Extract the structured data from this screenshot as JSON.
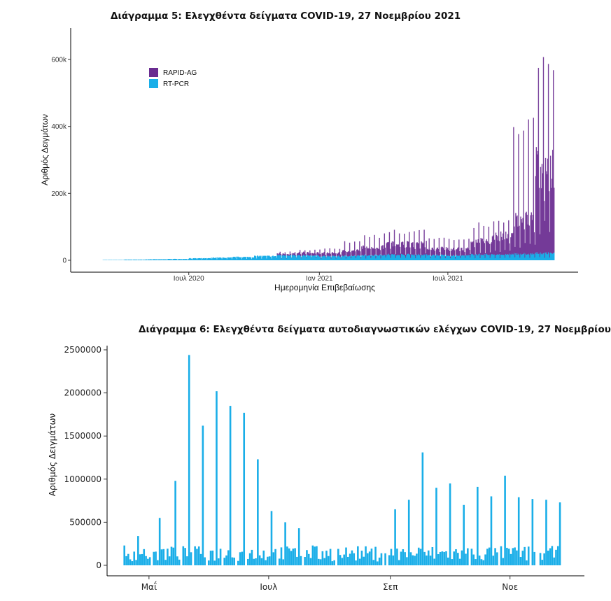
{
  "chart_data": [
    {
      "type": "bar",
      "title": "Διάγραμμα 5: Ελεγχθέντα δείγματα COVID-19, 27 Νοεμβρίου 2021",
      "xlabel": "Ημερομηνία Επιβεβαίωσης",
      "ylabel": "Αριθμός Δειγμάτων",
      "xlim": [
        "2020-03-01",
        "2021-11-27"
      ],
      "ylim": [
        0,
        680000
      ],
      "yticks": [
        0,
        200000,
        400000,
        600000
      ],
      "ytick_labels": [
        "0",
        "200k",
        "400k",
        "600k"
      ],
      "xticks": [
        "2020-07-01",
        "2021-01-01",
        "2021-07-01"
      ],
      "xtick_labels": [
        "Ιουλ 2020",
        "Ιαν 2021",
        "Ιουλ 2021"
      ],
      "stacked": true,
      "legend": "top-left",
      "grid": false,
      "series": [
        {
          "name": "RAPID-AG",
          "color": "#6a2c91",
          "period_months": [
            "2020-03",
            "2020-04",
            "2020-05",
            "2020-06",
            "2020-07",
            "2020-08",
            "2020-09",
            "2020-10",
            "2020-11",
            "2020-12",
            "2021-01",
            "2021-02",
            "2021-03",
            "2021-04",
            "2021-05",
            "2021-06",
            "2021-07",
            "2021-08",
            "2021-09",
            "2021-10",
            "2021-11"
          ],
          "typical_daily": [
            0,
            0,
            0,
            0,
            0,
            0,
            0,
            0,
            5000,
            10000,
            12000,
            20000,
            30000,
            40000,
            40000,
            25000,
            25000,
            50000,
            70000,
            130000,
            320000
          ],
          "peak_daily": [
            0,
            0,
            0,
            0,
            0,
            0,
            0,
            0,
            12000,
            18000,
            25000,
            45000,
            60000,
            75000,
            78000,
            55000,
            50000,
            95000,
            110000,
            420000,
            640000
          ]
        },
        {
          "name": "RT-PCR",
          "color": "#1aaee8",
          "period_months": [
            "2020-03",
            "2020-04",
            "2020-05",
            "2020-06",
            "2020-07",
            "2020-08",
            "2020-09",
            "2020-10",
            "2020-11",
            "2020-12",
            "2021-01",
            "2021-02",
            "2021-03",
            "2021-04",
            "2021-05",
            "2021-06",
            "2021-07",
            "2021-08",
            "2021-09",
            "2021-10",
            "2021-11"
          ],
          "typical_daily": [
            1000,
            2000,
            3000,
            4000,
            6000,
            8000,
            10000,
            13000,
            16000,
            15000,
            13000,
            14000,
            16000,
            18000,
            18000,
            16000,
            15000,
            18000,
            18000,
            20000,
            22000
          ],
          "peak_daily": [
            2000,
            3000,
            5000,
            7000,
            10000,
            14000,
            16000,
            20000,
            25000,
            25000,
            22000,
            22000,
            25000,
            27000,
            27000,
            25000,
            22000,
            25000,
            27000,
            28000,
            30000
          ]
        }
      ]
    },
    {
      "type": "bar",
      "title": "Διάγραμμα 6: Ελεγχθέντα δείγματα αυτοδιαγνωστικών ελέγχων COVID-19, 27 Νοεμβρίου 2021",
      "xlabel": "",
      "ylabel": "Αριθμός Δειγμάτων",
      "xlim": [
        "2021-04-15",
        "2021-11-30"
      ],
      "ylim": [
        0,
        2500000
      ],
      "yticks": [
        0,
        500000,
        1000000,
        1500000,
        2000000,
        2500000
      ],
      "ytick_labels": [
        "0",
        "500000",
        "1000000",
        "1500000",
        "2000000",
        "2500000"
      ],
      "xticks": [
        "2021-05-01",
        "2021-07-01",
        "2021-09-01",
        "2021-11-01"
      ],
      "xtick_labels": [
        "Μαΐ",
        "Ιουλ",
        "Σεπ",
        "Νοε"
      ],
      "grid": false,
      "series": [
        {
          "name": "",
          "color": "#1aaee8",
          "spike_dates": [
            "2021-04-18",
            "2021-04-25",
            "2021-05-06",
            "2021-05-14",
            "2021-05-21",
            "2021-05-28",
            "2021-06-04",
            "2021-06-11",
            "2021-06-18",
            "2021-06-25",
            "2021-07-02",
            "2021-07-09",
            "2021-07-16",
            "2021-07-23",
            "2021-07-30",
            "2021-08-06",
            "2021-08-13",
            "2021-08-20",
            "2021-08-27",
            "2021-09-03",
            "2021-09-10",
            "2021-09-17",
            "2021-09-24",
            "2021-10-01",
            "2021-10-08",
            "2021-10-15",
            "2021-10-22",
            "2021-10-29",
            "2021-11-05",
            "2021-11-12",
            "2021-11-19",
            "2021-11-26"
          ],
          "spike_values": [
            230000,
            340000,
            550000,
            980000,
            2440000,
            1620000,
            2020000,
            1850000,
            1770000,
            1230000,
            630000,
            500000,
            430000,
            230000,
            170000,
            120000,
            140000,
            140000,
            140000,
            650000,
            760000,
            1310000,
            900000,
            950000,
            700000,
            910000,
            800000,
            1040000,
            790000,
            770000,
            760000,
            730000
          ],
          "baseline_range": [
            0,
            300000
          ]
        }
      ]
    }
  ]
}
